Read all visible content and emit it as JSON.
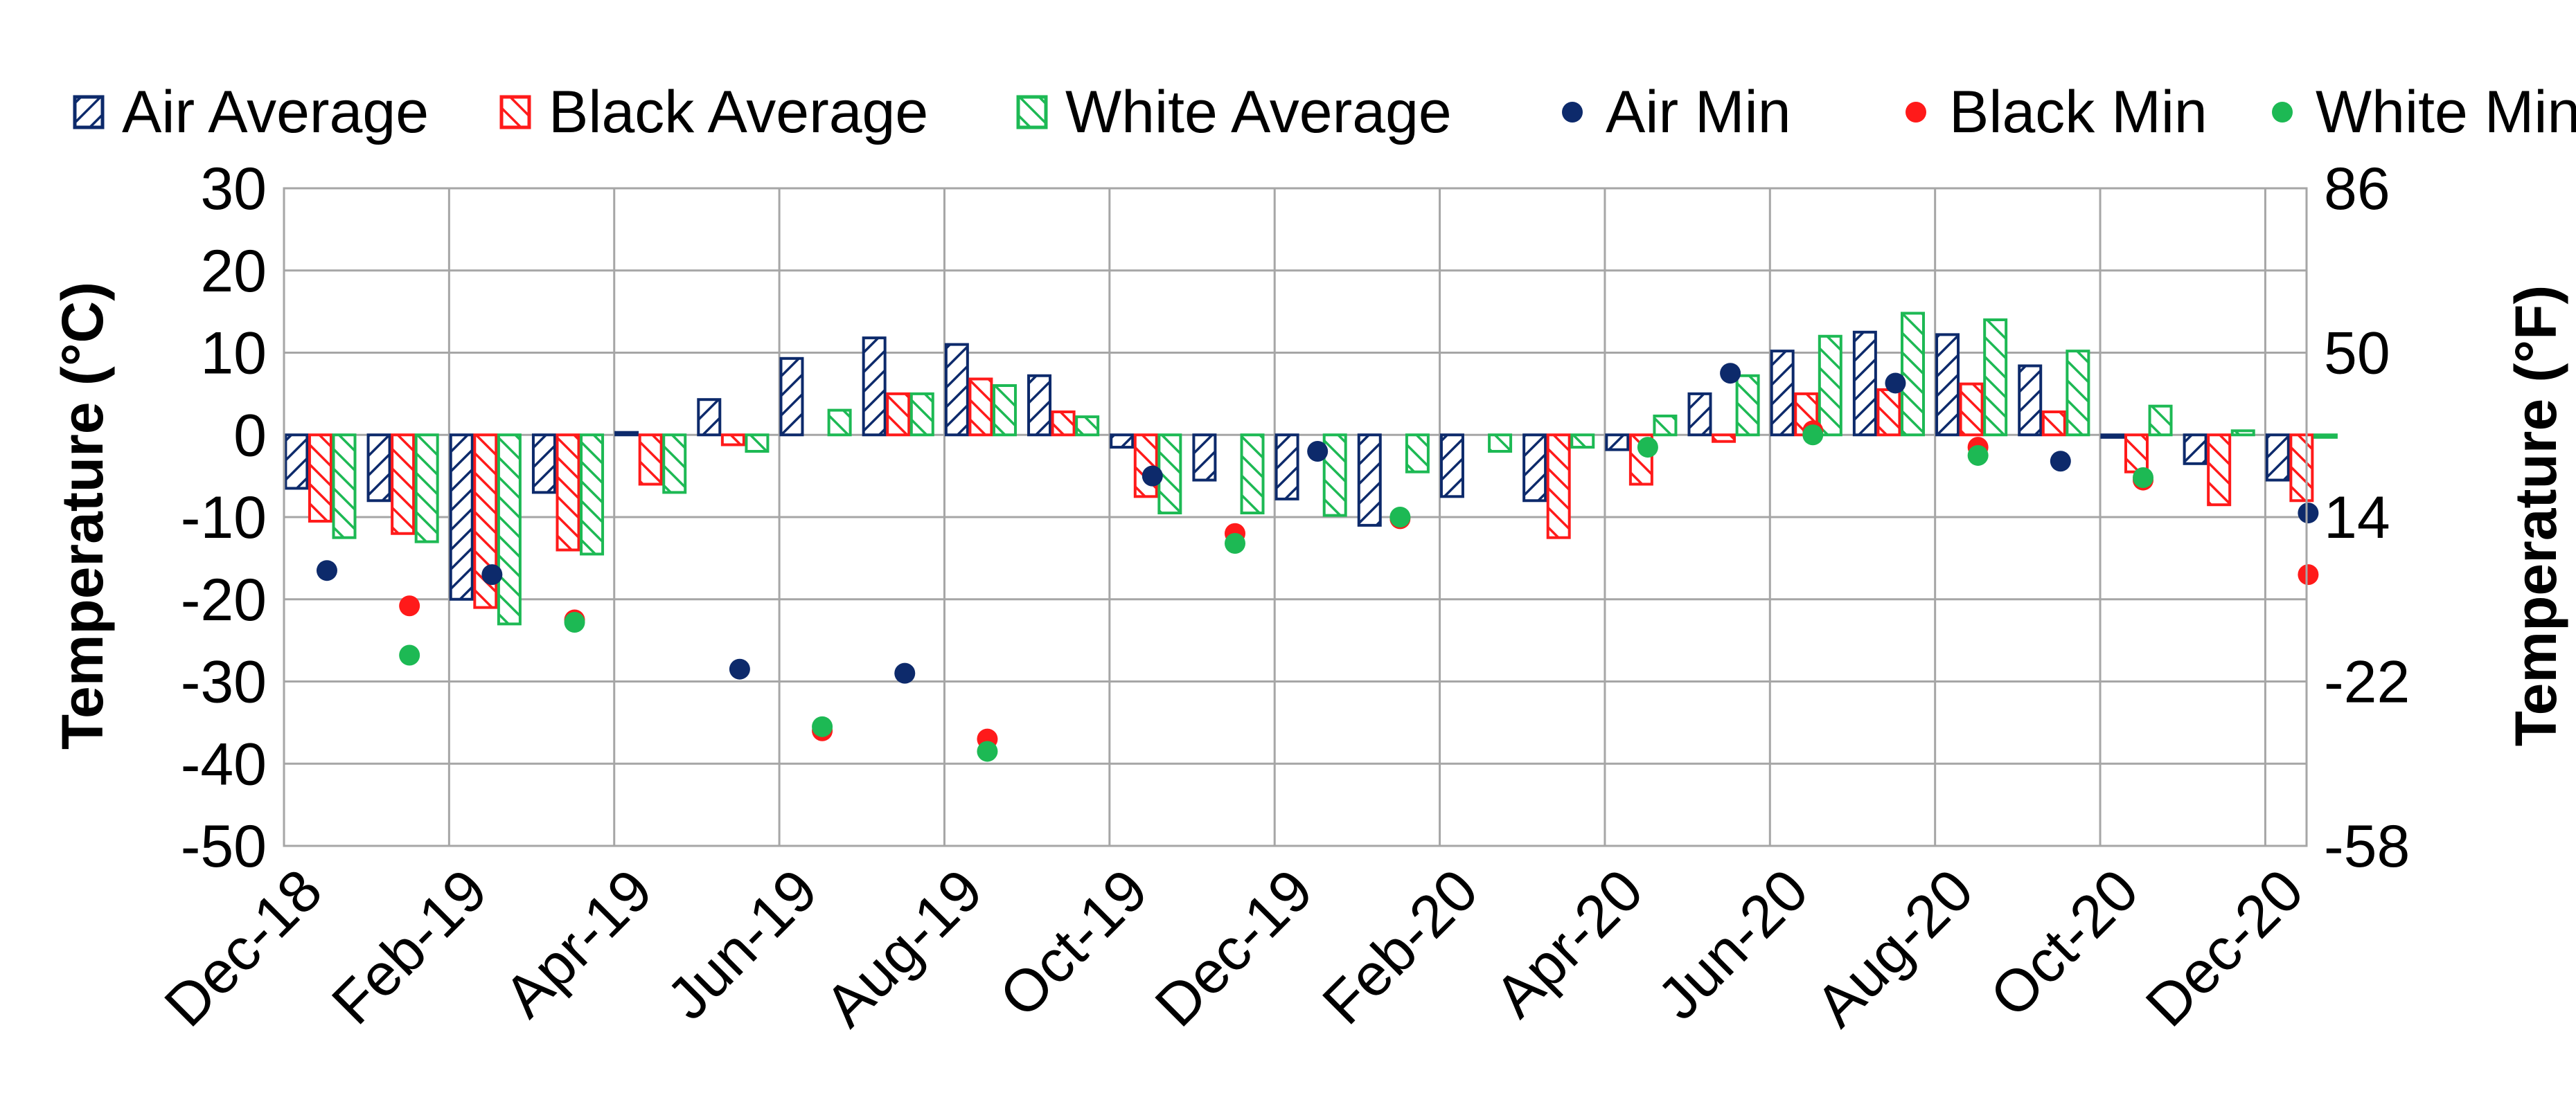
{
  "chart_data": {
    "type": "bar",
    "x_labels": [
      "Dec-18",
      "Feb-19",
      "Apr-19",
      "Jun-19",
      "Aug-19",
      "Oct-19",
      "Dec-19",
      "Feb-20",
      "Apr-20",
      "Jun-20",
      "Aug-20",
      "Oct-20",
      "Dec-20"
    ],
    "months": [
      "Dec-18",
      "Jan-19",
      "Feb-19",
      "Mar-19",
      "Apr-19",
      "May-19",
      "Jun-19",
      "Jul-19",
      "Aug-19",
      "Sep-19",
      "Oct-19",
      "Nov-19",
      "Dec-19",
      "Jan-20",
      "Feb-20",
      "Mar-20",
      "Apr-20",
      "May-20",
      "Jun-20",
      "Jul-20",
      "Aug-20",
      "Sep-20",
      "Oct-20",
      "Nov-20",
      "Dec-20"
    ],
    "y_left": {
      "label": "Temperature (°C)",
      "min": -50,
      "max": 30,
      "ticks": [
        30,
        20,
        10,
        0,
        -10,
        -20,
        -30,
        -40,
        -50
      ]
    },
    "y_right": {
      "label": "Temperature (°F)",
      "ticks": [
        86,
        50,
        14,
        -22,
        -58
      ]
    },
    "legend_position": "top",
    "grid": true,
    "series": [
      {
        "name": "Air Average",
        "kind": "bar",
        "color": "#0d2a6b",
        "values": [
          -6.5,
          -8,
          -20,
          -7,
          0.3,
          4.3,
          9.3,
          11.8,
          11,
          7.2,
          -1.5,
          -5.5,
          -7.8,
          -11,
          -7.5,
          -8,
          -1.8,
          5,
          10.2,
          12.5,
          12.2,
          8.4,
          -0.3,
          -3.5,
          -5.5
        ]
      },
      {
        "name": "Black Average",
        "kind": "bar",
        "color": "#ff1a1a",
        "values": [
          -10.5,
          -12,
          -21,
          -14,
          -6,
          -1.2,
          null,
          5,
          6.8,
          2.8,
          -7.5,
          null,
          null,
          null,
          null,
          -12.5,
          -6,
          -0.8,
          5,
          5.5,
          6.2,
          2.8,
          -4.5,
          -8.5,
          -8
        ]
      },
      {
        "name": "White Average",
        "kind": "bar",
        "color": "#1db954",
        "values": [
          -12.5,
          -13,
          -23,
          -14.5,
          -7,
          -2,
          3,
          5,
          6,
          2.2,
          -9.5,
          -9.5,
          -9.8,
          -4.5,
          -2,
          -1.5,
          2.3,
          7.2,
          12,
          14.8,
          14,
          10.2,
          3.5,
          0.5,
          -0.3
        ]
      },
      {
        "name": "Air Min",
        "kind": "point",
        "color": "#0d2a6b",
        "values": [
          -16.5,
          null,
          -17,
          null,
          null,
          -28.5,
          null,
          -29,
          null,
          null,
          -5,
          null,
          -2,
          null,
          null,
          null,
          null,
          7.5,
          null,
          6.3,
          null,
          -3.2,
          null,
          null,
          -9.5
        ]
      },
      {
        "name": "Black Min",
        "kind": "point",
        "color": "#ff1a1a",
        "values": [
          null,
          -20.8,
          null,
          -22.5,
          null,
          null,
          -36,
          null,
          -37,
          null,
          null,
          -12,
          null,
          -10.2,
          null,
          null,
          null,
          null,
          0.5,
          null,
          -1.5,
          null,
          -5.5,
          null,
          -17
        ]
      },
      {
        "name": "White Min",
        "kind": "point",
        "color": "#1db954",
        "values": [
          null,
          -26.8,
          null,
          -22.8,
          null,
          null,
          -35.5,
          null,
          -38.5,
          null,
          null,
          -13.2,
          null,
          -10,
          null,
          null,
          -1.5,
          null,
          0,
          null,
          -2.5,
          null,
          -5.2,
          null,
          null
        ]
      }
    ]
  }
}
